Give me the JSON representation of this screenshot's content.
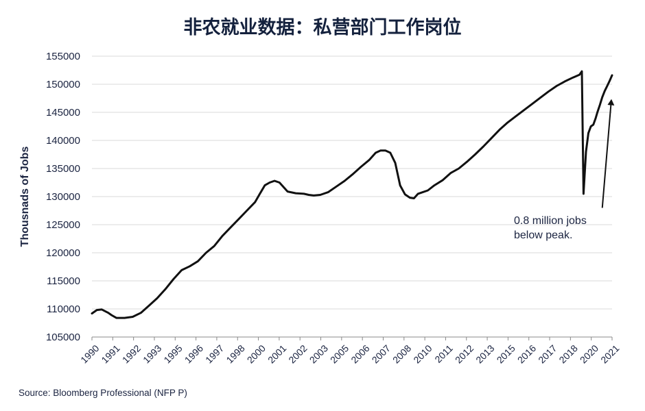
{
  "chart_data": {
    "type": "line",
    "title": "非农就业数据：私营部门工作岗位",
    "ylabel": "Thousnads of Jobs",
    "xlabel": "",
    "ylim": [
      105000,
      155000
    ],
    "yticks": [
      105000,
      110000,
      115000,
      120000,
      125000,
      130000,
      135000,
      140000,
      145000,
      150000,
      155000
    ],
    "xlim": [
      1990.0,
      2021.9
    ],
    "xtick_labels": [
      "1990",
      "1991",
      "1992",
      "1993",
      "1995",
      "1996",
      "1997",
      "1998",
      "2000",
      "2001",
      "2002",
      "2003",
      "2005",
      "2006",
      "2007",
      "2008",
      "2010",
      "2011",
      "2012",
      "2013",
      "2015",
      "2016",
      "2017",
      "2018",
      "2020",
      "2021"
    ],
    "grid": "horizontal",
    "line_color": "#111111",
    "series": [
      {
        "name": "",
        "x": [
          1990.0,
          1990.3,
          1990.6,
          1991.0,
          1991.2,
          1991.5,
          1992.0,
          1992.5,
          1993.0,
          1993.5,
          1994.0,
          1994.5,
          1995.0,
          1995.5,
          1996.0,
          1996.5,
          1997.0,
          1997.5,
          1998.0,
          1998.5,
          1999.0,
          1999.5,
          2000.0,
          2000.3,
          2000.6,
          2000.9,
          2001.2,
          2001.5,
          2002.0,
          2002.5,
          2003.0,
          2003.3,
          2003.6,
          2004.0,
          2004.5,
          2005.0,
          2005.5,
          2006.0,
          2006.5,
          2007.0,
          2007.4,
          2007.7,
          2008.0,
          2008.3,
          2008.6,
          2008.9,
          2009.2,
          2009.5,
          2009.75,
          2010.0,
          2010.3,
          2010.6,
          2011.0,
          2011.5,
          2012.0,
          2012.5,
          2013.0,
          2013.5,
          2014.0,
          2014.5,
          2015.0,
          2015.5,
          2016.0,
          2016.5,
          2017.0,
          2017.5,
          2018.0,
          2018.5,
          2019.0,
          2019.5,
          2019.9,
          2020.05,
          2020.15,
          2020.3,
          2020.45,
          2020.6,
          2020.75,
          2020.9,
          2021.0,
          2021.15,
          2021.3,
          2021.45,
          2021.6,
          2021.75,
          2021.9
        ],
        "values": [
          109200,
          109800,
          109900,
          109300,
          108900,
          108400,
          108400,
          108600,
          109300,
          110600,
          111900,
          113500,
          115300,
          116900,
          117600,
          118500,
          120000,
          121200,
          123000,
          124500,
          126000,
          127500,
          129000,
          130500,
          132000,
          132500,
          132800,
          132500,
          130900,
          130600,
          130500,
          130300,
          130200,
          130300,
          130800,
          131800,
          132800,
          134000,
          135300,
          136500,
          137800,
          138200,
          138200,
          137800,
          136000,
          132000,
          130400,
          129800,
          129700,
          130500,
          130800,
          131100,
          132000,
          132900,
          134200,
          135000,
          136200,
          137500,
          138900,
          140400,
          141900,
          143200,
          144300,
          145400,
          146500,
          147600,
          148700,
          149700,
          150500,
          151200,
          151700,
          152300,
          130500,
          138000,
          141300,
          142500,
          142800,
          144000,
          145000,
          146300,
          147700,
          148800,
          149700,
          150600,
          151600
        ]
      }
    ],
    "annotation": {
      "lines": [
        "0.8 million jobs",
        "below peak."
      ],
      "arrow_from": [
        2021.3,
        128000
      ],
      "arrow_to": [
        2021.85,
        147000
      ]
    }
  },
  "source_note": "Source: Bloomberg Professional (NFP P)"
}
